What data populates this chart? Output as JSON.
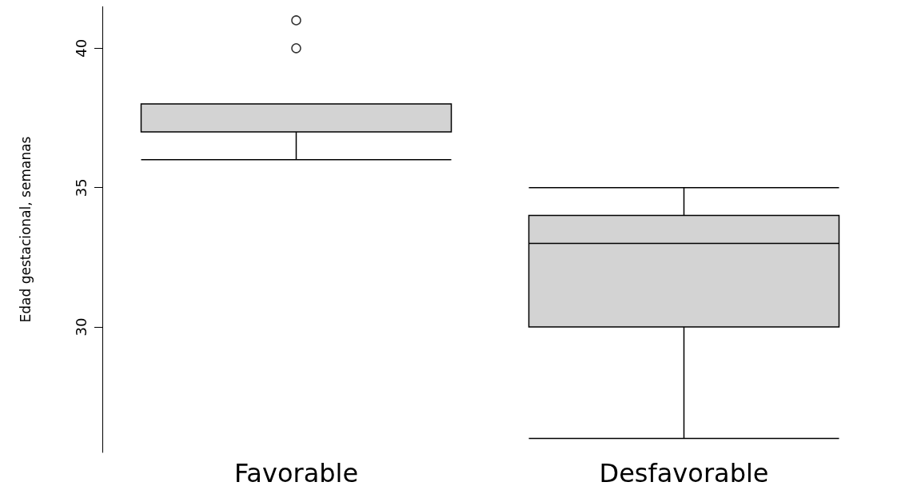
{
  "chart_data": {
    "type": "box",
    "ylabel": "Edad gestacional, semanas",
    "categories": [
      "Favorable",
      "Desfavorable"
    ],
    "boxes": [
      {
        "low": 36,
        "q1": 37,
        "median": 37,
        "q3": 38,
        "high": 38,
        "outliers": [
          40,
          41
        ]
      },
      {
        "low": 26,
        "q1": 30,
        "median": 33,
        "q3": 34,
        "high": 35
      }
    ],
    "color": "#d3d3d3",
    "ylim": [
      25.5,
      41.5
    ],
    "yticks": [
      30,
      35,
      40
    ],
    "grid": false
  }
}
